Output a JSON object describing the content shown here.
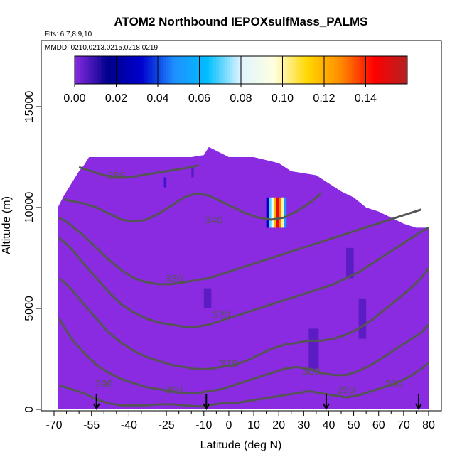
{
  "chart_data": {
    "type": "heatmap",
    "title": "ATOM2 Northbound IEPOXsulfMass_PALMS",
    "flights_note": "Flts: 6,7,8,9,10",
    "dates_note": "MMDD: 0210,0213,0215,0218,0219",
    "xlabel": "Latitude (deg N)",
    "ylabel": "Altitude (m)",
    "xlim": [
      -70,
      85
    ],
    "ylim": [
      0,
      17500
    ],
    "x_ticks": [
      -70,
      -55,
      -40,
      -25,
      -10,
      0,
      10,
      20,
      30,
      40,
      50,
      60,
      70,
      80
    ],
    "y_ticks": [
      0,
      5000,
      10000,
      15000
    ],
    "colorbar": {
      "ticks": [
        "0.00",
        "0.02",
        "0.04",
        "0.06",
        "0.08",
        "0.10",
        "0.12",
        "0.14"
      ],
      "range": [
        0,
        0.16
      ],
      "stops": [
        "#8a2be2",
        "#00008b",
        "#0000cd",
        "#1e90ff",
        "#00bfff",
        "#e0f4ff",
        "#ffffe0",
        "#ffd700",
        "#ff8c00",
        "#ff0000",
        "#b22222"
      ]
    },
    "background_value": 0.0,
    "domain_profile": {
      "lat": [
        -68.5,
        -66,
        -64,
        -62,
        -60,
        -58,
        -56,
        -44,
        -30,
        -15,
        -10,
        -8,
        0,
        10,
        20,
        25,
        35,
        40,
        45,
        50,
        55,
        60,
        65,
        70,
        75,
        80
      ],
      "top_alt": [
        10000,
        10600,
        11000,
        11400,
        11800,
        12100,
        12500,
        12500,
        12500,
        12500,
        12600,
        13000,
        12500,
        12500,
        12200,
        11800,
        11600,
        11200,
        10800,
        10500,
        10000,
        9800,
        9500,
        9200,
        9000,
        9000
      ]
    },
    "contours": [
      {
        "label": "290",
        "lat": [
          -68,
          -63,
          -58,
          -53,
          -48,
          -43,
          -38,
          -33,
          -28,
          -23,
          -18,
          -13,
          -10,
          -8,
          -3,
          2,
          7,
          12,
          17,
          22,
          27,
          32,
          37,
          42,
          47,
          52,
          57,
          62,
          67,
          72,
          77,
          80
        ],
        "alt": [
          1200,
          1000,
          800,
          500,
          300,
          200,
          200,
          200,
          250,
          250,
          200,
          150,
          150,
          200,
          300,
          300,
          400,
          500,
          600,
          700,
          800,
          900,
          800,
          700,
          600,
          700,
          900,
          1100,
          1300,
          1600,
          2000,
          2300
        ]
      },
      {
        "label": "300",
        "lat": [
          -68,
          -63,
          -58,
          -53,
          -48,
          -43,
          -38,
          -33,
          -28,
          -23,
          -18,
          -13,
          -8,
          -3,
          2,
          7,
          12,
          17,
          22,
          27,
          32,
          37,
          42,
          47,
          52,
          57,
          62,
          67,
          72,
          77,
          80
        ],
        "alt": [
          4500,
          3500,
          2800,
          2200,
          1800,
          1500,
          1300,
          1100,
          1000,
          900,
          800,
          800,
          900,
          1000,
          1200,
          1400,
          1600,
          1800,
          2000,
          2100,
          2000,
          1800,
          1700,
          1700,
          1900,
          2200,
          2600,
          3000,
          3400,
          3800,
          4200
        ]
      },
      {
        "label": "310",
        "lat": [
          -68,
          -65,
          -62,
          -58,
          -53,
          -48,
          -43,
          -38,
          -33,
          -28,
          -23,
          -18,
          -13,
          -8,
          -3,
          2,
          7,
          12,
          17,
          22,
          27,
          32,
          37,
          42,
          47,
          52,
          57,
          62,
          67,
          72,
          77,
          80
        ],
        "alt": [
          6500,
          6200,
          5800,
          5200,
          4500,
          3800,
          3300,
          2900,
          2600,
          2400,
          2200,
          2100,
          2000,
          2000,
          2100,
          2200,
          2400,
          2700,
          3000,
          3200,
          3300,
          3400,
          3400,
          3500,
          3700,
          4000,
          4400,
          4900,
          5400,
          5900,
          6500,
          7000
        ]
      },
      {
        "label": "320",
        "lat": [
          -68,
          -65,
          -62,
          -58,
          -53,
          -48,
          -43,
          -38,
          -33,
          -28,
          -23,
          -18,
          -13,
          -8,
          -3,
          2,
          7,
          12,
          17,
          22,
          27,
          32,
          37,
          42,
          47,
          52,
          57,
          62,
          67,
          72,
          77,
          80
        ],
        "alt": [
          8500,
          8200,
          7800,
          7200,
          6500,
          5800,
          5200,
          4800,
          4500,
          4300,
          4200,
          4100,
          4100,
          4200,
          4400,
          4600,
          4800,
          5000,
          5200,
          5400,
          5600,
          5800,
          6000,
          6200,
          6500,
          6800,
          7200,
          7600,
          8000,
          8400,
          8800,
          9000
        ]
      },
      {
        "label": "330",
        "lat": [
          -68,
          -65,
          -62,
          -58,
          -53,
          -48,
          -43,
          -38,
          -33,
          -28,
          -23,
          -18,
          -13,
          -8,
          -3,
          2,
          7,
          12,
          17,
          22,
          27,
          32,
          37,
          42,
          47,
          52,
          57,
          62,
          67,
          72,
          77
        ],
        "alt": [
          9500,
          9300,
          9000,
          8600,
          8000,
          7400,
          6900,
          6500,
          6300,
          6200,
          6200,
          6300,
          6400,
          6500,
          6700,
          6900,
          7100,
          7300,
          7500,
          7700,
          7900,
          8100,
          8300,
          8500,
          8700,
          8900,
          9100,
          9300,
          9500,
          9700,
          9900
        ]
      },
      {
        "label": "340",
        "lat": [
          -66,
          -62,
          -58,
          -53,
          -48,
          -43,
          -38,
          -33,
          -28,
          -23,
          -18,
          -13,
          -8,
          -3,
          2,
          7,
          12,
          17,
          22,
          27,
          32,
          37
        ],
        "alt": [
          10400,
          10300,
          10200,
          10000,
          9700,
          9400,
          9300,
          9400,
          9700,
          10100,
          10500,
          10700,
          10600,
          10300,
          10000,
          9700,
          9500,
          9400,
          9500,
          9800,
          10200,
          10700
        ]
      },
      {
        "label": "350",
        "lat": [
          -60,
          -55,
          -50,
          -45,
          -40,
          -35,
          -30,
          -25,
          -20,
          -15,
          -12
        ],
        "alt": [
          12000,
          11800,
          11600,
          11500,
          11500,
          11600,
          11700,
          11800,
          11900,
          12000,
          12100
        ]
      }
    ],
    "contour_labels": [
      {
        "text": "350",
        "lat": -45,
        "alt": 11400
      },
      {
        "text": "340",
        "lat": -6,
        "alt": 9200
      },
      {
        "text": "330",
        "lat": -22,
        "alt": 6300
      },
      {
        "text": "320",
        "lat": -3,
        "alt": 4500
      },
      {
        "text": "310",
        "lat": 0,
        "alt": 2100
      },
      {
        "text": "300",
        "lat": -22,
        "alt": 800
      },
      {
        "text": "300",
        "lat": 33,
        "alt": 1700
      },
      {
        "text": "290",
        "lat": -50,
        "alt": 1100
      },
      {
        "text": "290",
        "lat": 47,
        "alt": 800
      },
      {
        "text": "290",
        "lat": 66,
        "alt": 1100
      }
    ],
    "anomalies": [
      {
        "lat_start": 15,
        "lat_end": 23,
        "alt_start": 9000,
        "alt_end": 10500,
        "value": 0.08
      },
      {
        "lat_start": -26,
        "lat_end": -25,
        "alt_start": 11000,
        "alt_end": 11500,
        "value": 0.03
      },
      {
        "lat_start": -15,
        "lat_end": -14,
        "alt_start": 11500,
        "alt_end": 12000,
        "value": 0.01
      },
      {
        "lat_start": -10,
        "lat_end": -7,
        "alt_start": 5000,
        "alt_end": 6000,
        "value": 0.01
      },
      {
        "lat_start": 32,
        "lat_end": 36,
        "alt_start": 2000,
        "alt_end": 4000,
        "value": 0.01
      },
      {
        "lat_start": 47,
        "lat_end": 50,
        "alt_start": 6500,
        "alt_end": 8000,
        "value": 0.01
      },
      {
        "lat_start": 52,
        "lat_end": 55,
        "alt_start": 3500,
        "alt_end": 5500,
        "value": 0.01
      }
    ],
    "arrow_lats": [
      -53,
      -9,
      39,
      76
    ]
  }
}
